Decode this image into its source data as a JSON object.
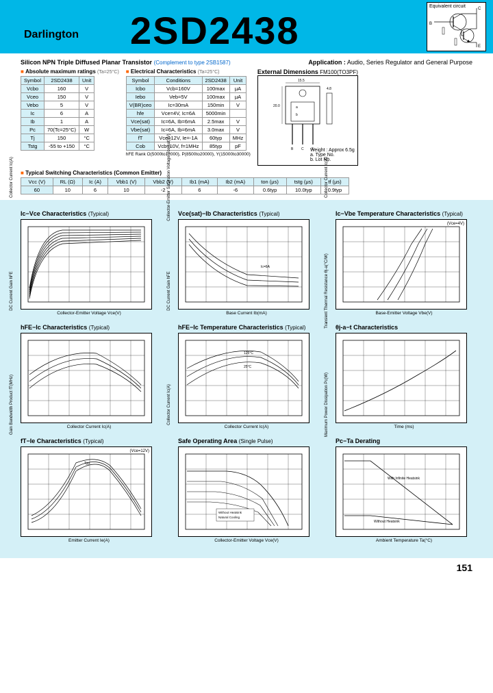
{
  "header": {
    "label": "Darlington",
    "title": "2SD2438",
    "circuit_label": "Equivalent circuit"
  },
  "subtitle": "Silicon NPN Triple Diffused Planar Transistor",
  "complement": "(Complement to type 2SB1587)",
  "application_label": "Application :",
  "application_text": "Audio, Series Regulator and General Purpose",
  "abs_max": {
    "title": "Absolute maximum ratings",
    "cond": "(Ta=25°C)",
    "headers": [
      "Symbol",
      "2SD2438",
      "Unit"
    ],
    "rows": [
      [
        "Vcbo",
        "160",
        "V"
      ],
      [
        "Vceo",
        "150",
        "V"
      ],
      [
        "Vebo",
        "5",
        "V"
      ],
      [
        "Ic",
        "6",
        "A"
      ],
      [
        "Ib",
        "1",
        "A"
      ],
      [
        "Pc",
        "70(Tc=25°C)",
        "W"
      ],
      [
        "Tj",
        "150",
        "°C"
      ],
      [
        "Tstg",
        "-55 to +150",
        "°C"
      ]
    ]
  },
  "elec": {
    "title": "Electrical Characteristics",
    "cond": "(Ta=25°C)",
    "headers": [
      "Symbol",
      "Conditions",
      "2SD2438",
      "Unit"
    ],
    "rows": [
      [
        "Icbo",
        "Vcb=160V",
        "100max",
        "μA"
      ],
      [
        "Iebo",
        "Veb=5V",
        "100max",
        "μA"
      ],
      [
        "V(BR)ceo",
        "Ic=30mA",
        "150min",
        "V"
      ],
      [
        "hfe",
        "Vce=4V, Ic=6A",
        "5000min",
        ""
      ],
      [
        "Vce(sat)",
        "Ic=6A, Ib=6mA",
        "2.5max",
        "V"
      ],
      [
        "Vbe(sat)",
        "Ic=6A, Ib=6mA",
        "3.0max",
        "V"
      ],
      [
        "fT",
        "Vce=12V, Ie=-1A",
        "60typ",
        "MHz"
      ],
      [
        "Cob",
        "Vcb=10V, f=1MHz",
        "85typ",
        "pF"
      ]
    ],
    "rank_note": "hFE Rank  O(5000to12000), P(8500to20000), Y(15000to30000)"
  },
  "switching": {
    "title": "Typical Switching Characteristics (Common Emitter)",
    "headers": [
      "Vcc (V)",
      "RL (Ω)",
      "Ic (A)",
      "Vbb1 (V)",
      "Vbb2 (V)",
      "Ib1 (mA)",
      "Ib2 (mA)",
      "ton (μs)",
      "tstg (μs)",
      "tf (μs)"
    ],
    "rows": [
      [
        "60",
        "10",
        "6",
        "10",
        "-2",
        "6",
        "-6",
        "0.6typ",
        "10.0typ",
        "0.9typ"
      ]
    ]
  },
  "dimensions": {
    "title": "External Dimensions",
    "pkg": "FM100(TO3PF)",
    "weight": "Weight : Approx 6.5g",
    "note_a": "a. Type No.",
    "note_b": "b. Lot No."
  },
  "charts": [
    [
      {
        "title": "Ic−Vce Characteristics",
        "typ": "(Typical)",
        "xlabel": "Collector-Emitter Voltage Vce(V)",
        "ylabel": "Collector Current Ic(A)",
        "type": "curves-up"
      },
      {
        "title": "Vce(sat)−Ib Characteristics",
        "typ": "(Typical)",
        "xlabel": "Base Current Ib(mA)",
        "ylabel": "Collector-Emitter Saturation Voltage Vce(sat)(V)",
        "type": "curves-down",
        "cond": ""
      },
      {
        "title": "Ic−Vbe Temperature Characteristics",
        "typ": "(Typical)",
        "xlabel": "Base-Emitter Voltage Vbe(V)",
        "ylabel": "Collector Current Ic(A)",
        "type": "curves-exp",
        "cond": "(Vce=4V)"
      }
    ],
    [
      {
        "title": "hFE−Ic Characteristics",
        "typ": "(Typical)",
        "xlabel": "Collector Current Ic(A)",
        "ylabel": "DC Current Gain hFE",
        "type": "curves-log"
      },
      {
        "title": "hFE−Ic Temperature Characteristics",
        "typ": "(Typical)",
        "xlabel": "Collector Current Ic(A)",
        "ylabel": "DC Current Gain hFE",
        "type": "curves-log-multi"
      },
      {
        "title": "θj-a−t Characteristics",
        "typ": "",
        "xlabel": "Time (ms)",
        "ylabel": "Transient Thermal Resistance θj-a(°C/W)",
        "type": "curve-single"
      }
    ],
    [
      {
        "title": "fT−Ie Characteristics",
        "typ": "(Typical)",
        "xlabel": "Emitter Current Ie(A)",
        "ylabel": "Gain Bandwidth Product fT(MHz)",
        "type": "bell",
        "cond": "(Vce=12V)"
      },
      {
        "title": "Safe Operating Area",
        "typ": "(Single Pulse)",
        "xlabel": "Collector-Emitter Voltage Vce(V)",
        "ylabel": "Collector Current Ic(A)",
        "type": "soa"
      },
      {
        "title": "Pc−Ta Derating",
        "typ": "",
        "xlabel": "Ambient Temperature Ta(°C)",
        "ylabel": "Maximum Power Dissipation Pc(W)",
        "type": "derating"
      }
    ]
  ],
  "page_num": "151"
}
